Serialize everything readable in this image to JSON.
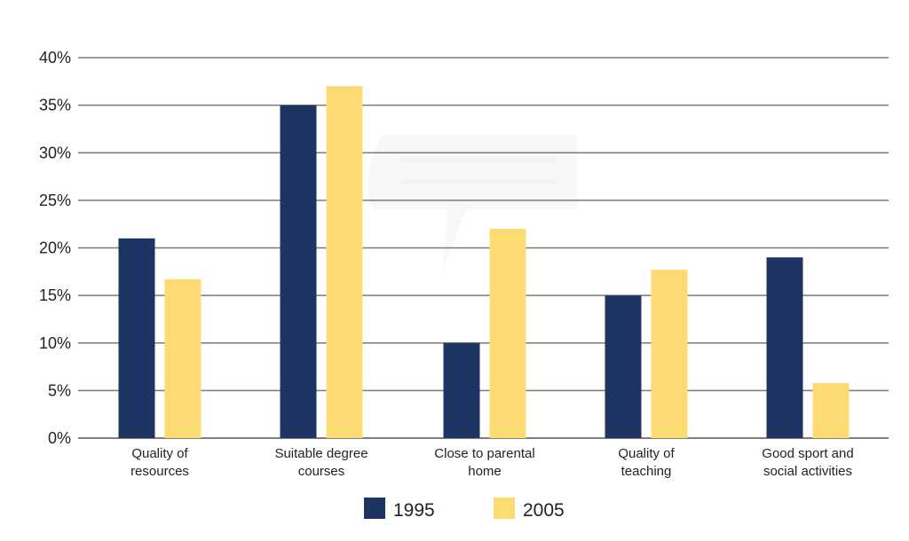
{
  "chart_data": {
    "type": "bar",
    "title": "",
    "xlabel": "",
    "ylabel": "",
    "categories": [
      [
        "Quality of",
        "resources"
      ],
      [
        "Suitable degree",
        "courses"
      ],
      [
        "Close to parental",
        "home"
      ],
      [
        "Quality of",
        "teaching"
      ],
      [
        "Good sport and",
        "social activities"
      ]
    ],
    "series": [
      {
        "name": "1995",
        "color": "#1e3564",
        "values": [
          21,
          35,
          10,
          15,
          19
        ]
      },
      {
        "name": "2005",
        "color": "#fddb73",
        "values": [
          16.7,
          37,
          22,
          17.7,
          5.8
        ]
      }
    ],
    "ylim": [
      0,
      40
    ],
    "yticks": [
      {
        "value": 0,
        "label": "0%"
      },
      {
        "value": 5,
        "label": "5%"
      },
      {
        "value": 10,
        "label": "10%"
      },
      {
        "value": 15,
        "label": "15%"
      },
      {
        "value": 20,
        "label": "20%"
      },
      {
        "value": 25,
        "label": "25%"
      },
      {
        "value": 30,
        "label": "30%"
      },
      {
        "value": 35,
        "label": "35%"
      },
      {
        "value": 40,
        "label": "40%"
      }
    ],
    "grid": true,
    "legend_position": "bottom-center"
  }
}
